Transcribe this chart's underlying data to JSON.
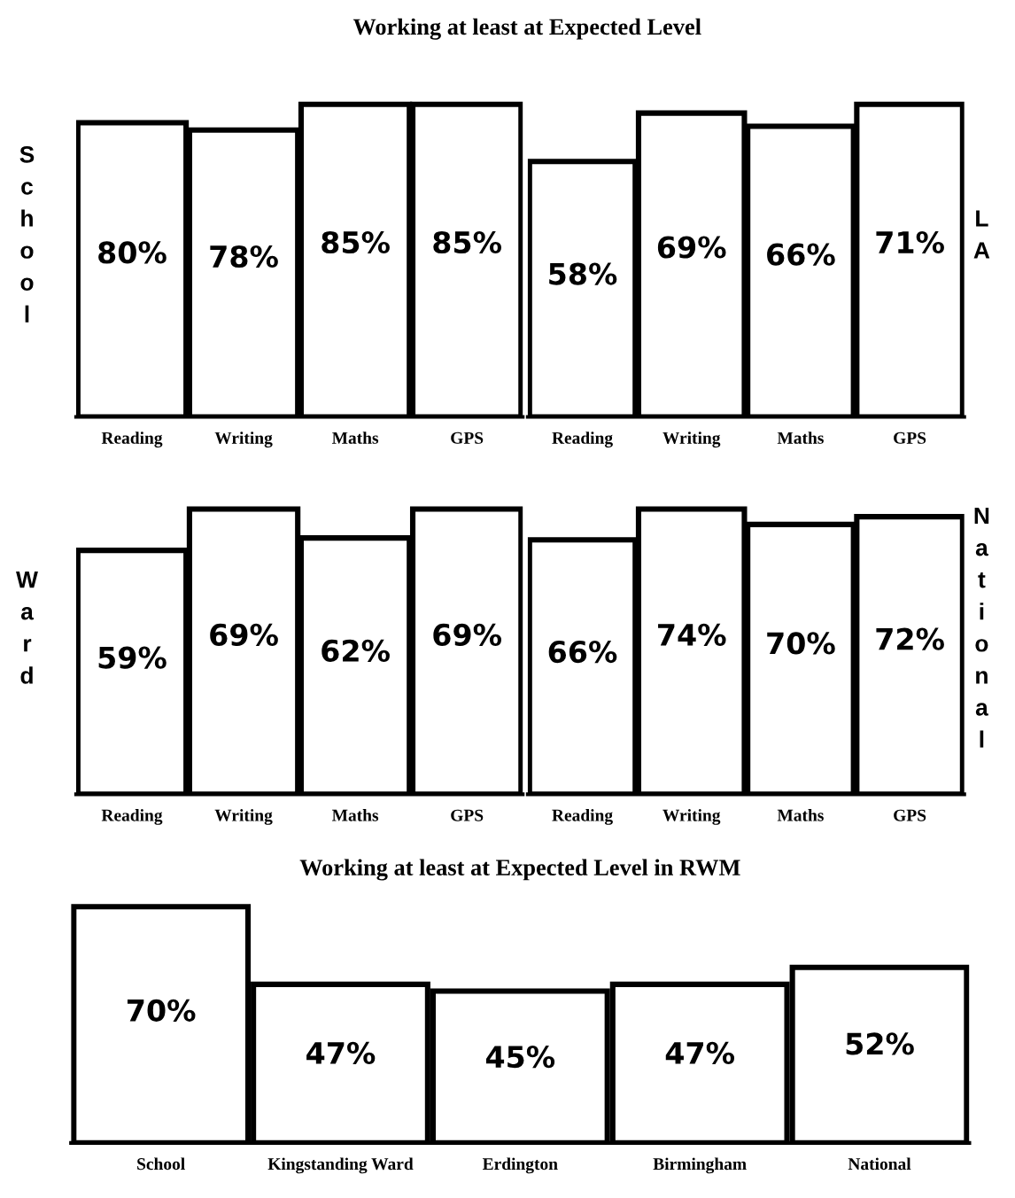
{
  "chart_data": [
    {
      "type": "bar",
      "title": "Working at least at Expected Level",
      "ylabel": "School",
      "categories": [
        "Reading",
        "Writing",
        "Maths",
        "GPS"
      ],
      "values": [
        80,
        78,
        85,
        85
      ],
      "value_labels": [
        "80%",
        "78%",
        "85%",
        "85%"
      ],
      "color": "#ffffff",
      "tick_labels": "x",
      "grid": false,
      "legend": false
    },
    {
      "type": "bar",
      "y2label": "LA",
      "categories": [
        "Reading",
        "Writing",
        "Maths",
        "GPS"
      ],
      "values": [
        58,
        69,
        66,
        71
      ],
      "value_labels": [
        "58%",
        "69%",
        "66%",
        "71%"
      ],
      "color": "#ffffff",
      "tick_labels": "x",
      "grid": false,
      "legend": false
    },
    {
      "type": "bar",
      "ylabel": "Ward",
      "categories": [
        "Reading",
        "Writing",
        "Maths",
        "GPS"
      ],
      "values": [
        59,
        69,
        62,
        69
      ],
      "value_labels": [
        "59%",
        "69%",
        "62%",
        "69%"
      ],
      "color": "#ffffff",
      "tick_labels": "x",
      "grid": false,
      "legend": false
    },
    {
      "type": "bar",
      "y2label": "National",
      "categories": [
        "Reading",
        "Writing",
        "Maths",
        "GPS"
      ],
      "values": [
        66,
        74,
        70,
        72
      ],
      "value_labels": [
        "66%",
        "74%",
        "70%",
        "72%"
      ],
      "color": "#ffffff",
      "tick_labels": "x",
      "grid": false,
      "legend": false
    },
    {
      "type": "bar",
      "title": "Working at least at Expected Level in RWM",
      "categories": [
        "School",
        "Kingstanding Ward",
        "Erdington",
        "Birmingham",
        "National"
      ],
      "values": [
        70,
        47,
        45,
        47,
        52
      ],
      "value_labels": [
        "70%",
        "47%",
        "45%",
        "47%",
        "52%"
      ],
      "color": "#ffffff",
      "tick_labels": "x",
      "grid": false,
      "legend": false
    }
  ]
}
